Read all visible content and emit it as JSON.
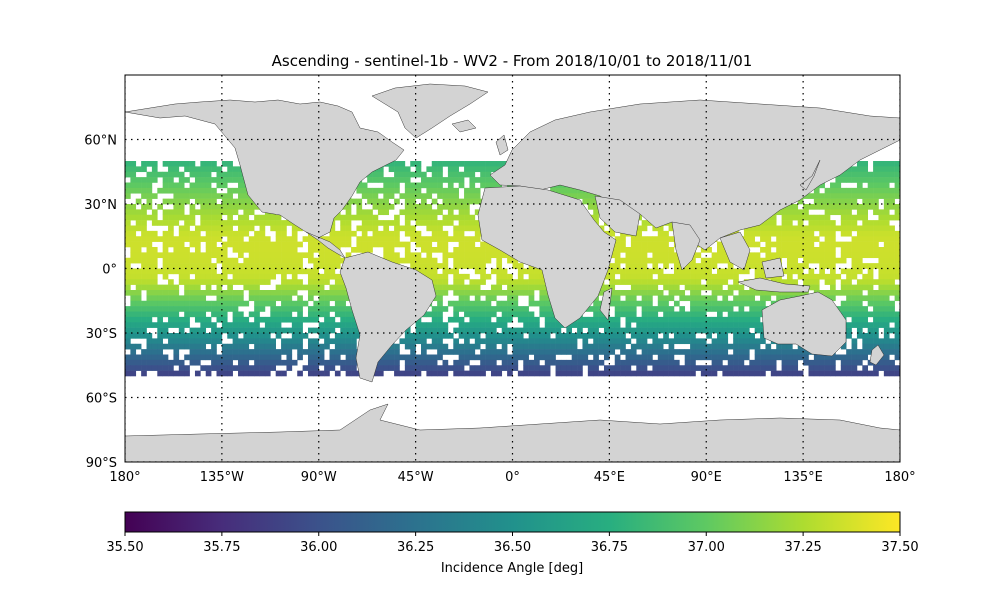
{
  "title": "Ascending - sentinel-1b - WV2 - From 2018/10/01 to 2018/11/01",
  "map": {
    "lon_ticks": [
      "180°",
      "135°W",
      "90°W",
      "45°W",
      "0°",
      "45°E",
      "90°E",
      "135°E",
      "180°"
    ],
    "lon_values": [
      -180,
      -135,
      -90,
      -45,
      0,
      45,
      90,
      135,
      180
    ],
    "lat_ticks": [
      "60°N",
      "30°N",
      "0°",
      "30°S",
      "60°S",
      "90°S"
    ],
    "lat_values": [
      60,
      30,
      0,
      -30,
      -60,
      -90
    ],
    "lat_range": [
      -90,
      90
    ],
    "lon_range": [
      -180,
      180
    ],
    "land_color": "#d3d3d3",
    "ocean_color": "#ffffff",
    "gridline_style": "dotted",
    "data_lat_extent": [
      -50,
      50
    ]
  },
  "colorbar": {
    "label": "Incidence Angle [deg]",
    "ticks": [
      "35.50",
      "35.75",
      "36.00",
      "36.25",
      "36.50",
      "36.75",
      "37.00",
      "37.25",
      "37.50"
    ],
    "min": 35.5,
    "max": 37.5,
    "colormap": "viridis",
    "orientation": "horizontal"
  }
}
